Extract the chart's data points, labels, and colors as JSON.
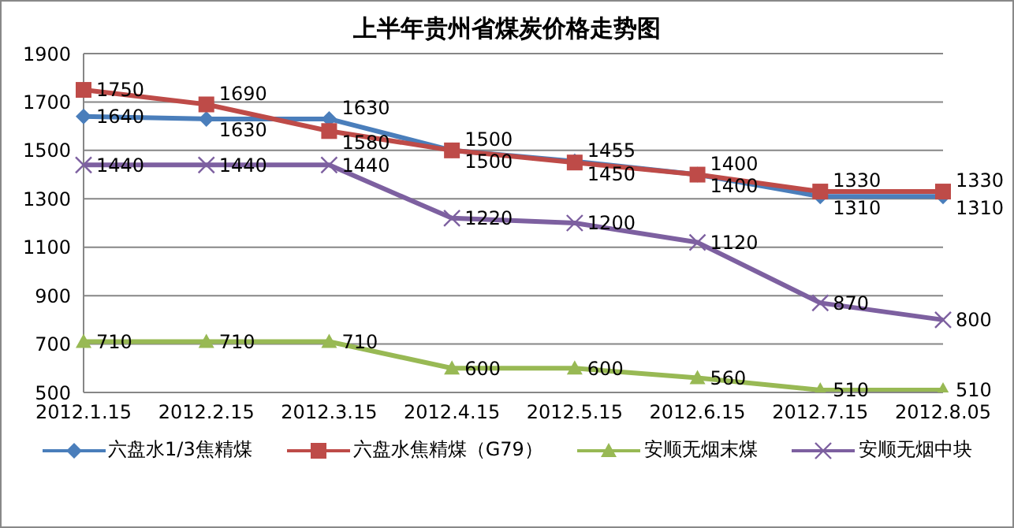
{
  "chart_data": {
    "type": "line",
    "title": "上半年贵州省煤炭价格走势图",
    "categories": [
      "2012.1.15",
      "2012.2.15",
      "2012.3.15",
      "2012.4.15",
      "2012.5.15",
      "2012.6.15",
      "2012.7.15",
      "2012.8.05"
    ],
    "series": [
      {
        "name": "六盘水1/3焦精煤",
        "color": "#4a7ebb",
        "marker": "diamond",
        "values": [
          1640,
          1630,
          1630,
          1500,
          1455,
          1400,
          1310,
          1310
        ]
      },
      {
        "name": "六盘水焦精煤（G79）",
        "color": "#be4b48",
        "marker": "square",
        "values": [
          1750,
          1690,
          1580,
          1500,
          1450,
          1400,
          1330,
          1330
        ]
      },
      {
        "name": "安顺无烟末煤",
        "color": "#98b954",
        "marker": "triangle",
        "values": [
          710,
          710,
          710,
          600,
          600,
          560,
          510,
          510
        ]
      },
      {
        "name": "安顺无烟中块",
        "color": "#7d60a0",
        "marker": "cross",
        "values": [
          1440,
          1440,
          1440,
          1220,
          1200,
          1120,
          870,
          800
        ]
      }
    ],
    "ylim": [
      500,
      1900
    ],
    "yticks": [
      500,
      700,
      900,
      1100,
      1300,
      1500,
      1700,
      1900
    ],
    "grid": "y",
    "legend": "bottom",
    "data_labels": true
  }
}
